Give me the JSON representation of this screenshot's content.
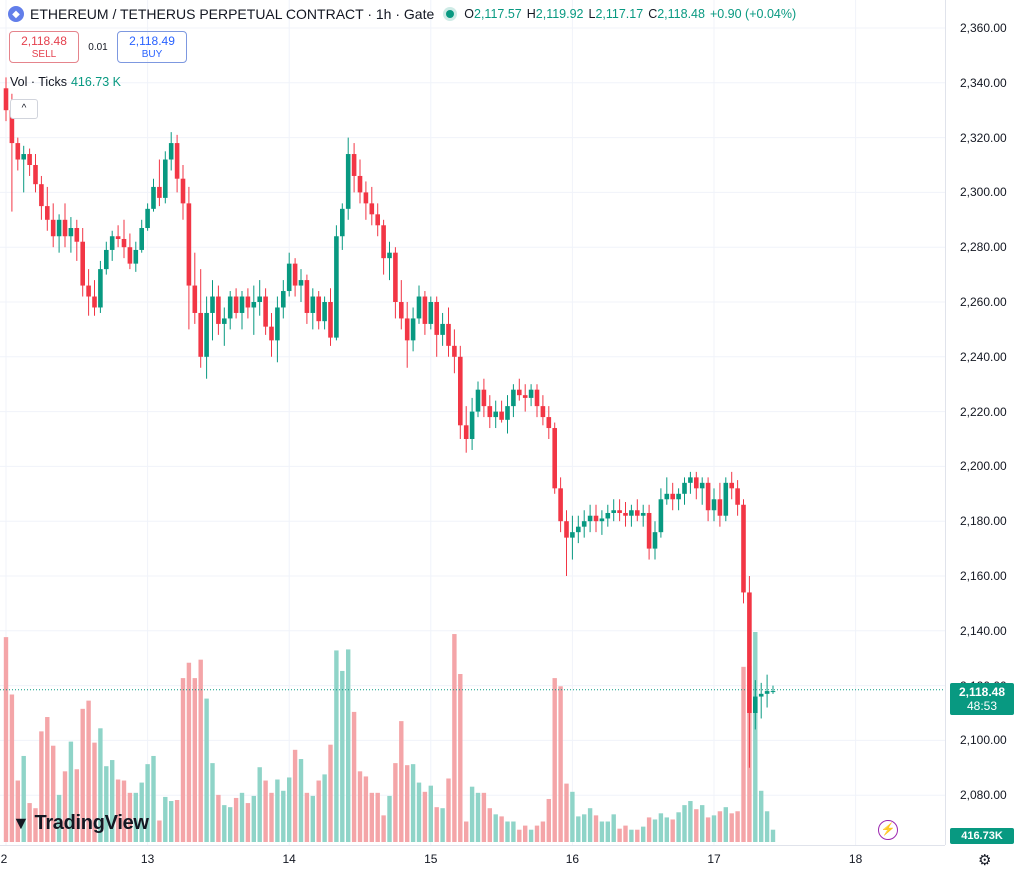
{
  "header": {
    "logo_icon": "ethereum-logo-icon",
    "logo_glyph": "◆",
    "title": "ETHEREUM / TETHERUS PERPETUAL CONTRACT · 1h · Gate",
    "ohlc": [
      {
        "label": "O",
        "value": "2,117.57"
      },
      {
        "label": "H",
        "value": "2,119.92"
      },
      {
        "label": "L",
        "value": "2,117.17"
      },
      {
        "label": "C",
        "value": "2,118.48"
      }
    ],
    "change": "+0.90 (+0.04%)"
  },
  "trade": {
    "sell_price": "2,118.48",
    "sell_label": "SELL",
    "spread": "0.01",
    "buy_price": "2,118.49",
    "buy_label": "BUY"
  },
  "volume_legend": {
    "label": "Vol · Ticks",
    "value": "416.73 K"
  },
  "collapse_glyph": "^",
  "badges": {
    "price": "2,118.48",
    "countdown": "48:53",
    "volume": "416.73K"
  },
  "brand": {
    "mark": "▼",
    "name": "TradingView"
  },
  "lightning_glyph": "⚡",
  "settings_glyph": "⚙",
  "colors": {
    "up": "#089981",
    "down": "#f23645",
    "vol_up": "#8fd4c8",
    "vol_down": "#f4a5a8",
    "grid": "#f0f3fa"
  },
  "chart_data": {
    "type": "candlestick",
    "interval": "1h",
    "price_range": [
      2060,
      2365
    ],
    "y_ticks": [
      "2,360.00",
      "2,340.00",
      "2,320.00",
      "2,300.00",
      "2,280.00",
      "2,260.00",
      "2,240.00",
      "2,220.00",
      "2,200.00",
      "2,180.00",
      "2,160.00",
      "2,140.00",
      "2,120.00",
      "2,100.00",
      "2,080.00"
    ],
    "x_ticks": [
      {
        "label": "2",
        "index": 0
      },
      {
        "label": "13",
        "index": 24
      },
      {
        "label": "14",
        "index": 48
      },
      {
        "label": "15",
        "index": 72
      },
      {
        "label": "16",
        "index": 96
      },
      {
        "label": "17",
        "index": 120
      },
      {
        "label": "18",
        "index": 144
      }
    ],
    "last_price": 2118.48,
    "candles": [
      [
        2338,
        2342,
        2326,
        2330,
        200
      ],
      [
        2330,
        2336,
        2293,
        2318,
        144
      ],
      [
        2318,
        2320,
        2308,
        2312,
        60
      ],
      [
        2312,
        2317,
        2300,
        2314,
        84
      ],
      [
        2314,
        2316,
        2306,
        2310,
        38
      ],
      [
        2310,
        2314,
        2300,
        2303,
        33
      ],
      [
        2303,
        2306,
        2290,
        2295,
        108
      ],
      [
        2295,
        2302,
        2286,
        2290,
        122
      ],
      [
        2290,
        2296,
        2280,
        2284,
        94
      ],
      [
        2284,
        2292,
        2278,
        2290,
        46
      ],
      [
        2290,
        2296,
        2280,
        2284,
        69
      ],
      [
        2284,
        2291,
        2278,
        2287,
        98
      ],
      [
        2287,
        2290,
        2275,
        2282,
        71
      ],
      [
        2282,
        2287,
        2262,
        2266,
        130
      ],
      [
        2266,
        2272,
        2255,
        2262,
        138
      ],
      [
        2262,
        2268,
        2255,
        2258,
        97
      ],
      [
        2258,
        2275,
        2256,
        2272,
        111
      ],
      [
        2272,
        2282,
        2270,
        2279,
        74
      ],
      [
        2279,
        2286,
        2275,
        2284,
        80
      ],
      [
        2284,
        2288,
        2280,
        2283,
        61
      ],
      [
        2283,
        2290,
        2276,
        2280,
        60
      ],
      [
        2280,
        2285,
        2272,
        2274,
        48
      ],
      [
        2274,
        2282,
        2271,
        2279,
        48
      ],
      [
        2279,
        2290,
        2278,
        2287,
        58
      ],
      [
        2287,
        2296,
        2286,
        2294,
        76
      ],
      [
        2294,
        2305,
        2293,
        2302,
        84
      ],
      [
        2302,
        2312,
        2295,
        2298,
        21
      ],
      [
        2298,
        2315,
        2296,
        2312,
        44
      ],
      [
        2312,
        2322,
        2308,
        2318,
        40
      ],
      [
        2318,
        2321,
        2300,
        2305,
        41
      ],
      [
        2305,
        2310,
        2290,
        2296,
        160
      ],
      [
        2296,
        2302,
        2250,
        2266,
        175
      ],
      [
        2266,
        2278,
        2252,
        2256,
        160
      ],
      [
        2256,
        2272,
        2236,
        2240,
        178
      ],
      [
        2240,
        2262,
        2232,
        2256,
        140
      ],
      [
        2256,
        2268,
        2246,
        2262,
        77
      ],
      [
        2262,
        2266,
        2248,
        2252,
        46
      ],
      [
        2252,
        2258,
        2244,
        2254,
        36
      ],
      [
        2254,
        2264,
        2250,
        2262,
        34
      ],
      [
        2262,
        2265,
        2254,
        2256,
        43
      ],
      [
        2256,
        2264,
        2250,
        2262,
        48
      ],
      [
        2262,
        2265,
        2254,
        2258,
        38
      ],
      [
        2258,
        2266,
        2248,
        2260,
        45
      ],
      [
        2260,
        2268,
        2255,
        2262,
        73
      ],
      [
        2262,
        2265,
        2248,
        2251,
        60
      ],
      [
        2251,
        2256,
        2240,
        2246,
        48
      ],
      [
        2246,
        2262,
        2238,
        2258,
        61
      ],
      [
        2258,
        2268,
        2254,
        2264,
        50
      ],
      [
        2264,
        2278,
        2262,
        2274,
        63
      ],
      [
        2274,
        2276,
        2262,
        2266,
        90
      ],
      [
        2266,
        2272,
        2260,
        2268,
        81
      ],
      [
        2268,
        2270,
        2252,
        2256,
        48
      ],
      [
        2256,
        2265,
        2250,
        2262,
        45
      ],
      [
        2262,
        2264,
        2250,
        2253,
        60
      ],
      [
        2253,
        2262,
        2250,
        2260,
        66
      ],
      [
        2260,
        2265,
        2244,
        2247,
        95
      ],
      [
        2247,
        2288,
        2246,
        2284,
        187
      ],
      [
        2284,
        2296,
        2279,
        2294,
        167
      ],
      [
        2294,
        2320,
        2290,
        2314,
        188
      ],
      [
        2314,
        2318,
        2300,
        2306,
        127
      ],
      [
        2306,
        2312,
        2296,
        2300,
        69
      ],
      [
        2300,
        2304,
        2290,
        2296,
        64
      ],
      [
        2296,
        2302,
        2288,
        2292,
        48
      ],
      [
        2292,
        2296,
        2284,
        2288,
        48
      ],
      [
        2288,
        2290,
        2270,
        2276,
        26
      ],
      [
        2276,
        2282,
        2268,
        2278,
        45
      ],
      [
        2278,
        2280,
        2254,
        2260,
        77
      ],
      [
        2260,
        2268,
        2250,
        2254,
        118
      ],
      [
        2254,
        2260,
        2236,
        2246,
        75
      ],
      [
        2246,
        2258,
        2242,
        2254,
        76
      ],
      [
        2254,
        2266,
        2252,
        2262,
        58
      ],
      [
        2262,
        2264,
        2248,
        2252,
        49
      ],
      [
        2252,
        2262,
        2250,
        2260,
        55
      ],
      [
        2260,
        2262,
        2240,
        2248,
        34
      ],
      [
        2248,
        2256,
        2244,
        2252,
        33
      ],
      [
        2252,
        2258,
        2240,
        2244,
        62
      ],
      [
        2244,
        2250,
        2234,
        2240,
        203
      ],
      [
        2240,
        2244,
        2210,
        2215,
        164
      ],
      [
        2215,
        2222,
        2205,
        2210,
        20
      ],
      [
        2210,
        2225,
        2206,
        2220,
        54
      ],
      [
        2220,
        2231,
        2218,
        2228,
        48
      ],
      [
        2228,
        2232,
        2218,
        2222,
        48
      ],
      [
        2222,
        2226,
        2214,
        2218,
        33
      ],
      [
        2218,
        2224,
        2214,
        2220,
        27
      ],
      [
        2220,
        2224,
        2216,
        2217,
        25
      ],
      [
        2217,
        2226,
        2212,
        2222,
        20
      ],
      [
        2222,
        2230,
        2218,
        2228,
        20
      ],
      [
        2228,
        2232,
        2224,
        2226,
        12
      ],
      [
        2226,
        2230,
        2220,
        2225,
        16
      ],
      [
        2225,
        2230,
        2222,
        2228,
        12
      ],
      [
        2228,
        2230,
        2218,
        2222,
        16
      ],
      [
        2222,
        2226,
        2215,
        2218,
        20
      ],
      [
        2218,
        2222,
        2210,
        2214,
        42
      ],
      [
        2214,
        2216,
        2190,
        2192,
        160
      ],
      [
        2192,
        2196,
        2176,
        2180,
        152
      ],
      [
        2180,
        2184,
        2160,
        2174,
        57
      ],
      [
        2174,
        2182,
        2166,
        2176,
        49
      ],
      [
        2176,
        2182,
        2172,
        2178,
        25
      ],
      [
        2178,
        2184,
        2174,
        2180,
        27
      ],
      [
        2180,
        2186,
        2176,
        2182,
        33
      ],
      [
        2182,
        2186,
        2176,
        2180,
        26
      ],
      [
        2180,
        2184,
        2175,
        2181,
        20
      ],
      [
        2181,
        2186,
        2178,
        2183,
        20
      ],
      [
        2183,
        2188,
        2180,
        2184,
        27
      ],
      [
        2184,
        2188,
        2180,
        2183,
        13
      ],
      [
        2183,
        2187,
        2178,
        2182,
        16
      ],
      [
        2182,
        2186,
        2178,
        2184,
        12
      ],
      [
        2184,
        2188,
        2180,
        2182,
        12
      ],
      [
        2182,
        2186,
        2178,
        2183,
        15
      ],
      [
        2183,
        2186,
        2166,
        2170,
        24
      ],
      [
        2170,
        2180,
        2166,
        2176,
        22
      ],
      [
        2176,
        2192,
        2174,
        2188,
        28
      ],
      [
        2188,
        2196,
        2186,
        2190,
        24
      ],
      [
        2190,
        2194,
        2184,
        2188,
        22
      ],
      [
        2188,
        2192,
        2184,
        2190,
        29
      ],
      [
        2190,
        2196,
        2186,
        2194,
        36
      ],
      [
        2194,
        2198,
        2190,
        2196,
        40
      ],
      [
        2196,
        2198,
        2188,
        2192,
        32
      ],
      [
        2192,
        2196,
        2186,
        2194,
        36
      ],
      [
        2194,
        2196,
        2180,
        2184,
        24
      ],
      [
        2184,
        2192,
        2180,
        2188,
        26
      ],
      [
        2188,
        2194,
        2178,
        2182,
        30
      ],
      [
        2182,
        2196,
        2180,
        2194,
        34
      ],
      [
        2194,
        2198,
        2188,
        2192,
        28
      ],
      [
        2192,
        2195,
        2182,
        2186,
        30
      ],
      [
        2186,
        2188,
        2150,
        2154,
        171
      ],
      [
        2154,
        2160,
        2090,
        2110,
        172
      ],
      [
        2110,
        2122,
        2104,
        2116,
        205
      ],
      [
        2116,
        2121,
        2108,
        2117,
        50
      ],
      [
        2117,
        2124,
        2112,
        2118,
        30
      ],
      [
        2118,
        2120,
        2117,
        2118,
        12
      ]
    ]
  }
}
